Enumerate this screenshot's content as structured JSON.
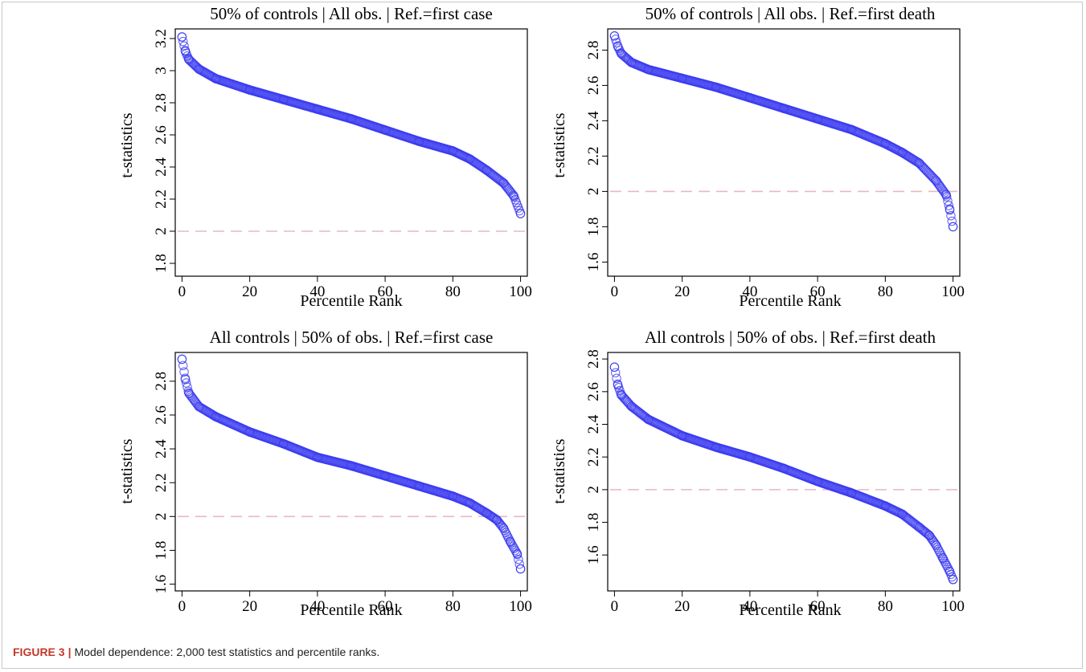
{
  "caption": {
    "label": "FIGURE 3",
    "separator": "|",
    "text": "Model dependence: 2,000 test statistics and percentile ranks."
  },
  "colors": {
    "points": "#3a3af0",
    "reference_line": "#e8b8c0"
  },
  "chart_data": [
    {
      "type": "scatter",
      "title": "50% of controls | All obs. | Ref.=first case",
      "xlabel": "Percentile Rank",
      "ylabel": "t-statistics",
      "xlim": [
        -2,
        102
      ],
      "ylim": [
        1.72,
        3.26
      ],
      "xticks": [
        0,
        20,
        40,
        60,
        80,
        100
      ],
      "yticks": [
        1.8,
        2,
        2.2,
        2.4,
        2.6,
        2.8,
        3,
        3.2
      ],
      "reference_line": 2.0,
      "curve": [
        [
          0,
          3.21
        ],
        [
          1,
          3.12
        ],
        [
          2,
          3.07
        ],
        [
          5,
          3.01
        ],
        [
          10,
          2.95
        ],
        [
          20,
          2.88
        ],
        [
          30,
          2.82
        ],
        [
          40,
          2.76
        ],
        [
          50,
          2.7
        ],
        [
          60,
          2.63
        ],
        [
          70,
          2.56
        ],
        [
          80,
          2.5
        ],
        [
          85,
          2.45
        ],
        [
          90,
          2.38
        ],
        [
          95,
          2.3
        ],
        [
          98,
          2.22
        ],
        [
          100,
          2.11
        ]
      ]
    },
    {
      "type": "scatter",
      "title": "50% of controls | All obs. | Ref.=first death",
      "xlabel": "Percentile Rank",
      "ylabel": "t-statistics",
      "xlim": [
        -2,
        102
      ],
      "ylim": [
        1.52,
        2.92
      ],
      "xticks": [
        0,
        20,
        40,
        60,
        80,
        100
      ],
      "yticks": [
        1.6,
        1.8,
        2,
        2.2,
        2.4,
        2.6,
        2.8
      ],
      "reference_line": 2.0,
      "curve": [
        [
          0,
          2.88
        ],
        [
          1,
          2.82
        ],
        [
          2,
          2.78
        ],
        [
          5,
          2.73
        ],
        [
          10,
          2.69
        ],
        [
          20,
          2.64
        ],
        [
          30,
          2.59
        ],
        [
          40,
          2.53
        ],
        [
          50,
          2.47
        ],
        [
          60,
          2.41
        ],
        [
          70,
          2.35
        ],
        [
          80,
          2.27
        ],
        [
          85,
          2.22
        ],
        [
          90,
          2.16
        ],
        [
          95,
          2.06
        ],
        [
          98,
          1.98
        ],
        [
          99,
          1.9
        ],
        [
          100,
          1.8
        ]
      ]
    },
    {
      "type": "scatter",
      "title": "All controls | 50% of obs. | Ref.=first case",
      "xlabel": "Percentile Rank",
      "ylabel": "t-statistics",
      "xlim": [
        -2,
        102
      ],
      "ylim": [
        1.56,
        2.97
      ],
      "xticks": [
        0,
        20,
        40,
        60,
        80,
        100
      ],
      "yticks": [
        1.6,
        1.8,
        2,
        2.2,
        2.4,
        2.6,
        2.8
      ],
      "reference_line": 2.0,
      "curve": [
        [
          0,
          2.93
        ],
        [
          1,
          2.81
        ],
        [
          2,
          2.73
        ],
        [
          5,
          2.65
        ],
        [
          10,
          2.59
        ],
        [
          20,
          2.5
        ],
        [
          30,
          2.43
        ],
        [
          40,
          2.35
        ],
        [
          50,
          2.3
        ],
        [
          60,
          2.24
        ],
        [
          70,
          2.18
        ],
        [
          80,
          2.12
        ],
        [
          85,
          2.08
        ],
        [
          90,
          2.02
        ],
        [
          93,
          1.98
        ],
        [
          95,
          1.93
        ],
        [
          97,
          1.85
        ],
        [
          99,
          1.78
        ],
        [
          100,
          1.69
        ]
      ]
    },
    {
      "type": "scatter",
      "title": "All controls | 50% of obs. | Ref.=first death",
      "xlabel": "Percentile Rank",
      "ylabel": "t-statistics",
      "xlim": [
        -2,
        102
      ],
      "ylim": [
        1.38,
        2.84
      ],
      "xticks": [
        0,
        20,
        40,
        60,
        80,
        100
      ],
      "yticks": [
        1.6,
        1.8,
        2,
        2.2,
        2.4,
        2.6,
        2.8
      ],
      "reference_line": 2.0,
      "curve": [
        [
          0,
          2.75
        ],
        [
          1,
          2.64
        ],
        [
          2,
          2.58
        ],
        [
          5,
          2.51
        ],
        [
          10,
          2.43
        ],
        [
          20,
          2.33
        ],
        [
          30,
          2.26
        ],
        [
          40,
          2.2
        ],
        [
          50,
          2.13
        ],
        [
          60,
          2.05
        ],
        [
          70,
          1.98
        ],
        [
          80,
          1.9
        ],
        [
          85,
          1.85
        ],
        [
          90,
          1.77
        ],
        [
          93,
          1.72
        ],
        [
          95,
          1.66
        ],
        [
          97,
          1.58
        ],
        [
          99,
          1.5
        ],
        [
          100,
          1.45
        ]
      ]
    }
  ]
}
